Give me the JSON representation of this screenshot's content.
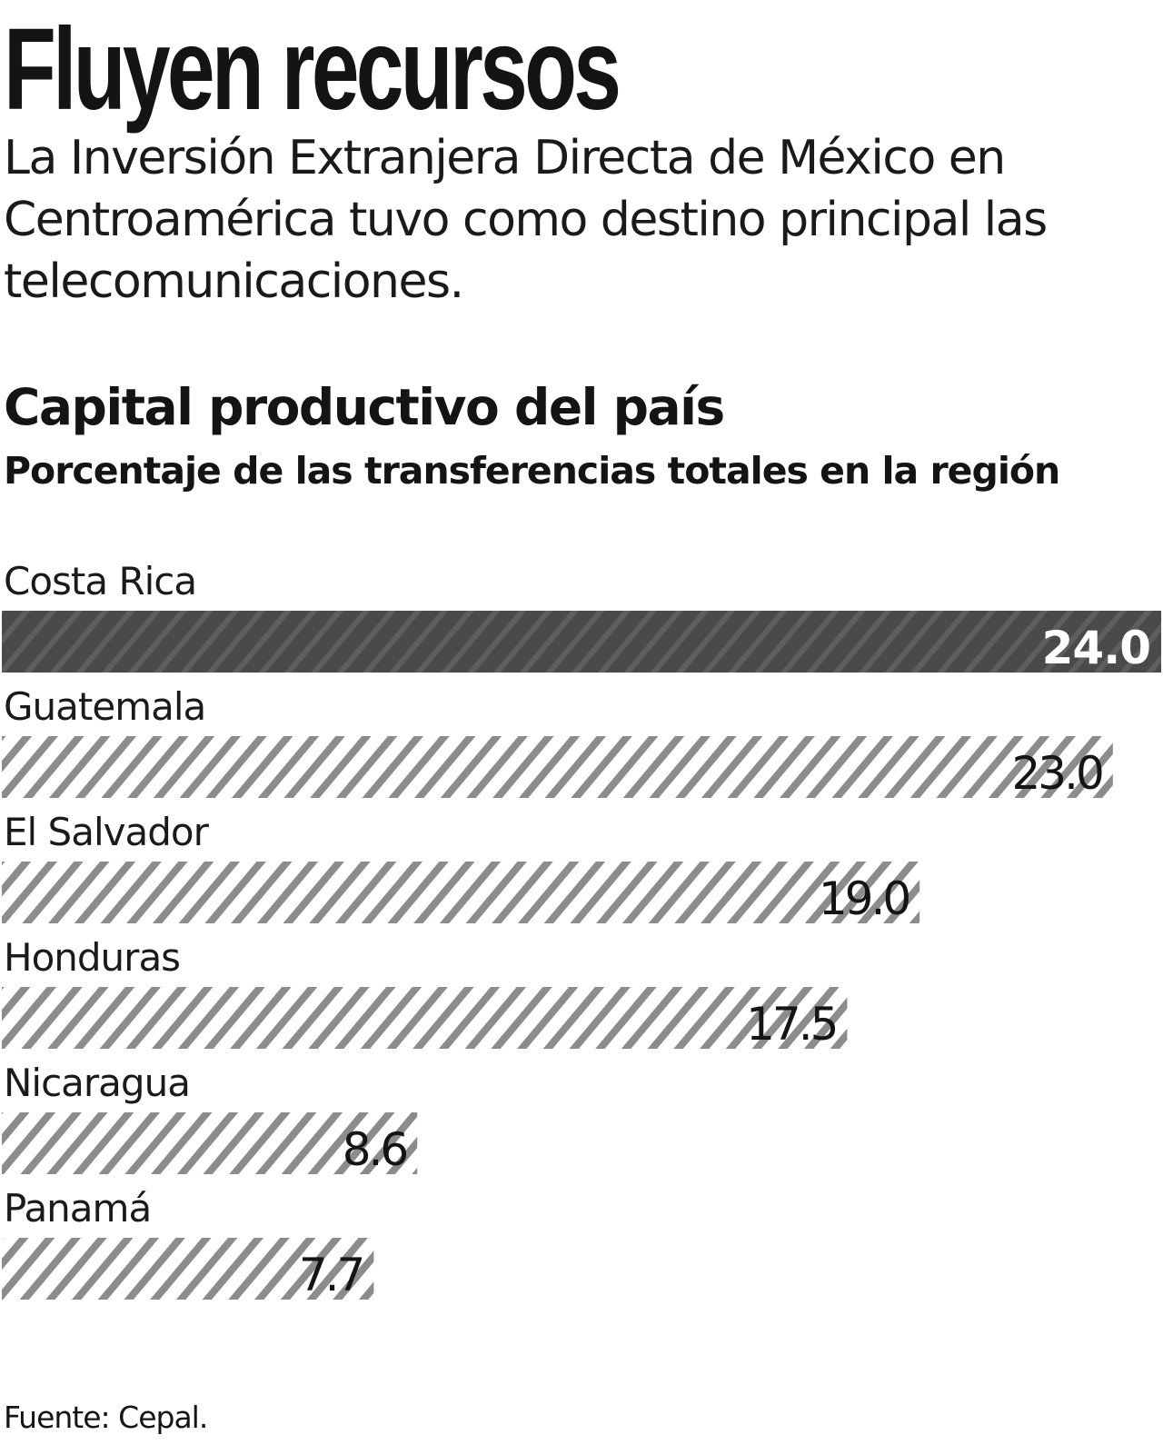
{
  "headline": "Fluyen recursos",
  "deck": "La Inversión Extranjera Directa de México en Centroamérica tuvo como destino principal las telecomunicaciones.",
  "source": "Fuente: Cepal.",
  "colors": {
    "highlight_bar": "#4a4a4a",
    "stripe": "#8c8c8c",
    "text": "#141414"
  },
  "chart_data": {
    "type": "bar",
    "orientation": "horizontal",
    "title": "Capital productivo del país",
    "subtitle": "Porcentaje de las transferencias totales en la región",
    "categories": [
      "Costa Rica",
      "Guatemala",
      "El Salvador",
      "Honduras",
      "Nicaragua",
      "Panamá"
    ],
    "values": [
      24.0,
      23.0,
      19.0,
      17.5,
      8.6,
      7.7
    ],
    "value_labels": [
      "24.0",
      "23.0",
      "19.0",
      "17.5",
      "8.6",
      "7.7"
    ],
    "highlight_index": 0,
    "xlim": [
      0,
      24.0
    ],
    "grid": false,
    "legend": "none"
  }
}
